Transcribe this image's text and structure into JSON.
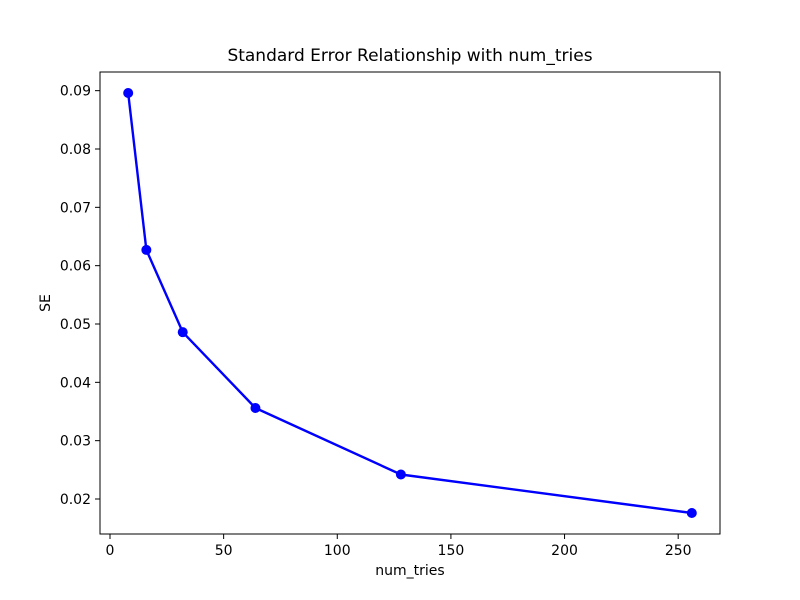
{
  "figure": {
    "background_color": "#ffffff",
    "text_color": "#000000",
    "axis_color": "#000000"
  },
  "chart_data": {
    "type": "line",
    "title": "Standard Error Relationship with num_tries",
    "xlabel": "num_tries",
    "ylabel": "SE",
    "series": [
      {
        "name": "SE",
        "x": [
          8,
          16,
          32,
          64,
          128,
          256
        ],
        "y": [
          0.0896,
          0.0627,
          0.0486,
          0.0356,
          0.0242,
          0.0176
        ]
      }
    ],
    "line_color": "#0000ff",
    "marker": "o",
    "marker_color": "#0000ff",
    "xlim": [
      -4.4,
      268.4
    ],
    "ylim": [
      0.014,
      0.0932
    ],
    "xticks": [
      0,
      50,
      100,
      150,
      200,
      250
    ],
    "xtick_labels": [
      "0",
      "50",
      "100",
      "150",
      "200",
      "250"
    ],
    "yticks": [
      0.02,
      0.03,
      0.04,
      0.05,
      0.06,
      0.07,
      0.08,
      0.09
    ],
    "ytick_labels": [
      "0.02",
      "0.03",
      "0.04",
      "0.05",
      "0.06",
      "0.07",
      "0.08",
      "0.09"
    ],
    "grid": false,
    "legend": null
  }
}
